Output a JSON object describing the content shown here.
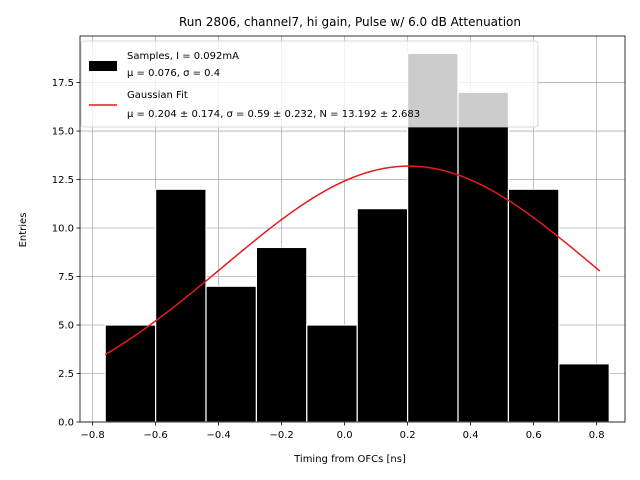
{
  "chart_data": {
    "type": "bar",
    "title": "Run 2806, channel7, hi gain, Pulse w/ 6.0 dB Attenuation",
    "xlabel": "Timing from OFCs [ns]",
    "ylabel": "Entries",
    "xlim": [
      -0.84,
      0.89
    ],
    "ylim": [
      0,
      19.9
    ],
    "grid": true,
    "xticks": [
      -0.8,
      -0.6,
      -0.4,
      -0.2,
      0.0,
      0.2,
      0.4,
      0.6,
      0.8
    ],
    "xtick_labels": [
      "−0.8",
      "−0.6",
      "−0.4",
      "−0.2",
      "0.0",
      "0.2",
      "0.4",
      "0.6",
      "0.8"
    ],
    "yticks": [
      0.0,
      2.5,
      5.0,
      7.5,
      10.0,
      12.5,
      15.0,
      17.5
    ],
    "ytick_labels": [
      "0.0",
      "2.5",
      "5.0",
      "7.5",
      "10.0",
      "12.5",
      "15.0",
      "17.5"
    ],
    "bin_edges": [
      -0.76,
      -0.6,
      -0.44,
      -0.28,
      -0.12,
      0.04,
      0.2,
      0.36,
      0.52,
      0.68,
      0.84
    ],
    "bins": [
      {
        "left": -0.76,
        "right": -0.6,
        "count": 5
      },
      {
        "left": -0.6,
        "right": -0.44,
        "count": 12
      },
      {
        "left": -0.44,
        "right": -0.28,
        "count": 7
      },
      {
        "left": -0.28,
        "right": -0.12,
        "count": 9
      },
      {
        "left": -0.12,
        "right": 0.04,
        "count": 5
      },
      {
        "left": 0.04,
        "right": 0.2,
        "count": 11
      },
      {
        "left": 0.2,
        "right": 0.36,
        "count": 19
      },
      {
        "left": 0.36,
        "right": 0.52,
        "count": 17
      },
      {
        "left": 0.52,
        "right": 0.68,
        "count": 12
      },
      {
        "left": 0.68,
        "right": 0.84,
        "count": 3
      }
    ],
    "hist_color": "#000000",
    "fit": {
      "mu": 0.204,
      "sigma": 0.59,
      "N": 13.192,
      "x_range": [
        -0.76,
        0.81
      ],
      "color": "#e31a1c"
    },
    "legend": {
      "placement": "top-left",
      "entries": [
        {
          "kind": "patch",
          "line1": "Samples, I = 0.092mA",
          "line2": "μ = 0.076, σ = 0.4"
        },
        {
          "kind": "line",
          "line1": "Gaussian Fit",
          "line2": "μ = 0.204 ± 0.174, σ = 0.59 ± 0.232, N = 13.192 ± 2.683"
        }
      ]
    }
  }
}
